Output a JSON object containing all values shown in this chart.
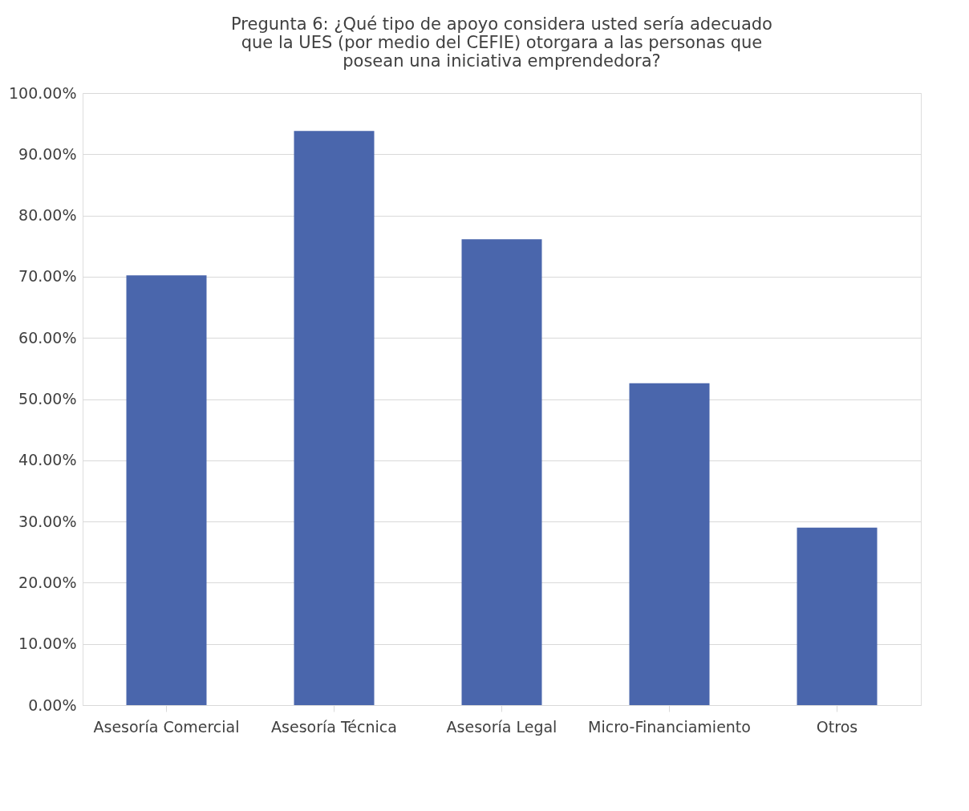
{
  "chart_data": {
    "type": "bar",
    "title": "Pregunta 6: ¿Qué tipo de apoyo considera usted sería adecuado que la UES (por medio del CEFIE) otorgara a las personas que posean una iniciativa emprendedora?",
    "categories": [
      "Asesoría Comercial",
      "Asesoría Técnica",
      "Asesoría Legal",
      "Micro-Financiamiento",
      "Otros"
    ],
    "values": [
      70.2,
      93.8,
      76.1,
      52.6,
      29.0
    ],
    "color": "#4a66ac",
    "ylim": [
      0,
      100
    ],
    "yticks": [
      {
        "value": 0,
        "label": "0.00%"
      },
      {
        "value": 10,
        "label": "10.00%"
      },
      {
        "value": 20,
        "label": "20.00%"
      },
      {
        "value": 30,
        "label": "30.00%"
      },
      {
        "value": 40,
        "label": "40.00%"
      },
      {
        "value": 50,
        "label": "50.00%"
      },
      {
        "value": 60,
        "label": "60.00%"
      },
      {
        "value": 70,
        "label": "70.00%"
      },
      {
        "value": 80,
        "label": "80.00%"
      },
      {
        "value": 90,
        "label": "90.00%"
      },
      {
        "value": 100,
        "label": "100.00%"
      }
    ],
    "grid": "y"
  }
}
